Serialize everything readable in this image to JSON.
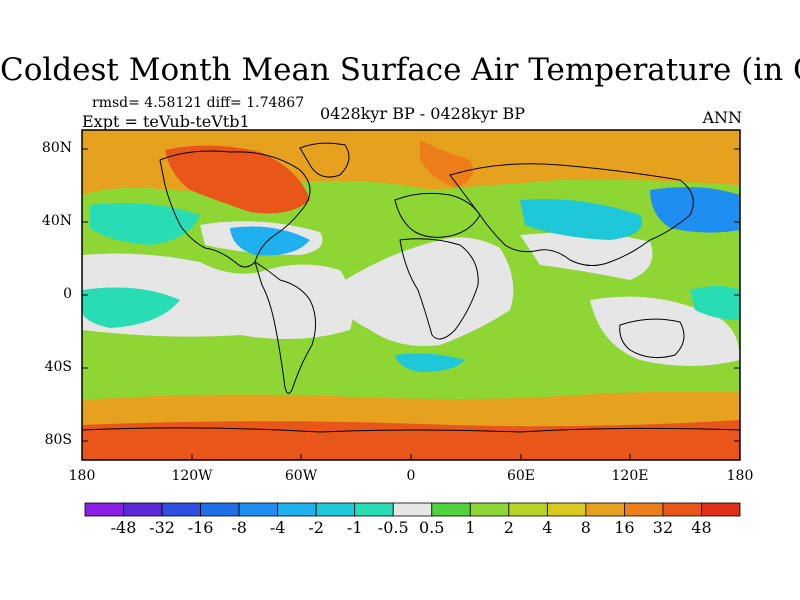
{
  "title": "Coldest Month Mean Surface Air Temperature (in C)",
  "stats": "rmsd= 4.58121 diff= 1.74867",
  "experiment": "Expt = teVub-teVtb1",
  "period": "0428kyr BP - 0428kyr BP",
  "season": "ANN",
  "map": {
    "projection": "cylindrical equidistant",
    "lon_range": [
      -180,
      180
    ],
    "lat_range": [
      -90,
      90
    ],
    "lat_ticks": [
      {
        "value": 80,
        "label": "80N"
      },
      {
        "value": 40,
        "label": "40N"
      },
      {
        "value": 0,
        "label": "0"
      },
      {
        "value": -40,
        "label": "40S"
      },
      {
        "value": -80,
        "label": "80S"
      }
    ],
    "lon_ticks": [
      {
        "value": -180,
        "label": "180"
      },
      {
        "value": -120,
        "label": "120W"
      },
      {
        "value": -60,
        "label": "60W"
      },
      {
        "value": 0,
        "label": "0"
      },
      {
        "value": 60,
        "label": "60E"
      },
      {
        "value": 120,
        "label": "120E"
      },
      {
        "value": 180,
        "label": "180"
      }
    ]
  },
  "colorbar": {
    "levels": [
      "-48",
      "-32",
      "-16",
      "-8",
      "-4",
      "-2",
      "-1",
      "-0.5",
      "0.5",
      "1",
      "2",
      "4",
      "8",
      "16",
      "32",
      "48"
    ],
    "colors": [
      "#8a1fe6",
      "#5a2ad9",
      "#2f4fe0",
      "#1e6fe6",
      "#1e8ff0",
      "#1fb0f0",
      "#1fc8d8",
      "#28ddb4",
      "#e6e6e6",
      "#4fd23a",
      "#8ed633",
      "#b8d429",
      "#d8c820",
      "#e6a11e",
      "#ec7f1a",
      "#e8561a",
      "#e0301a"
    ]
  }
}
